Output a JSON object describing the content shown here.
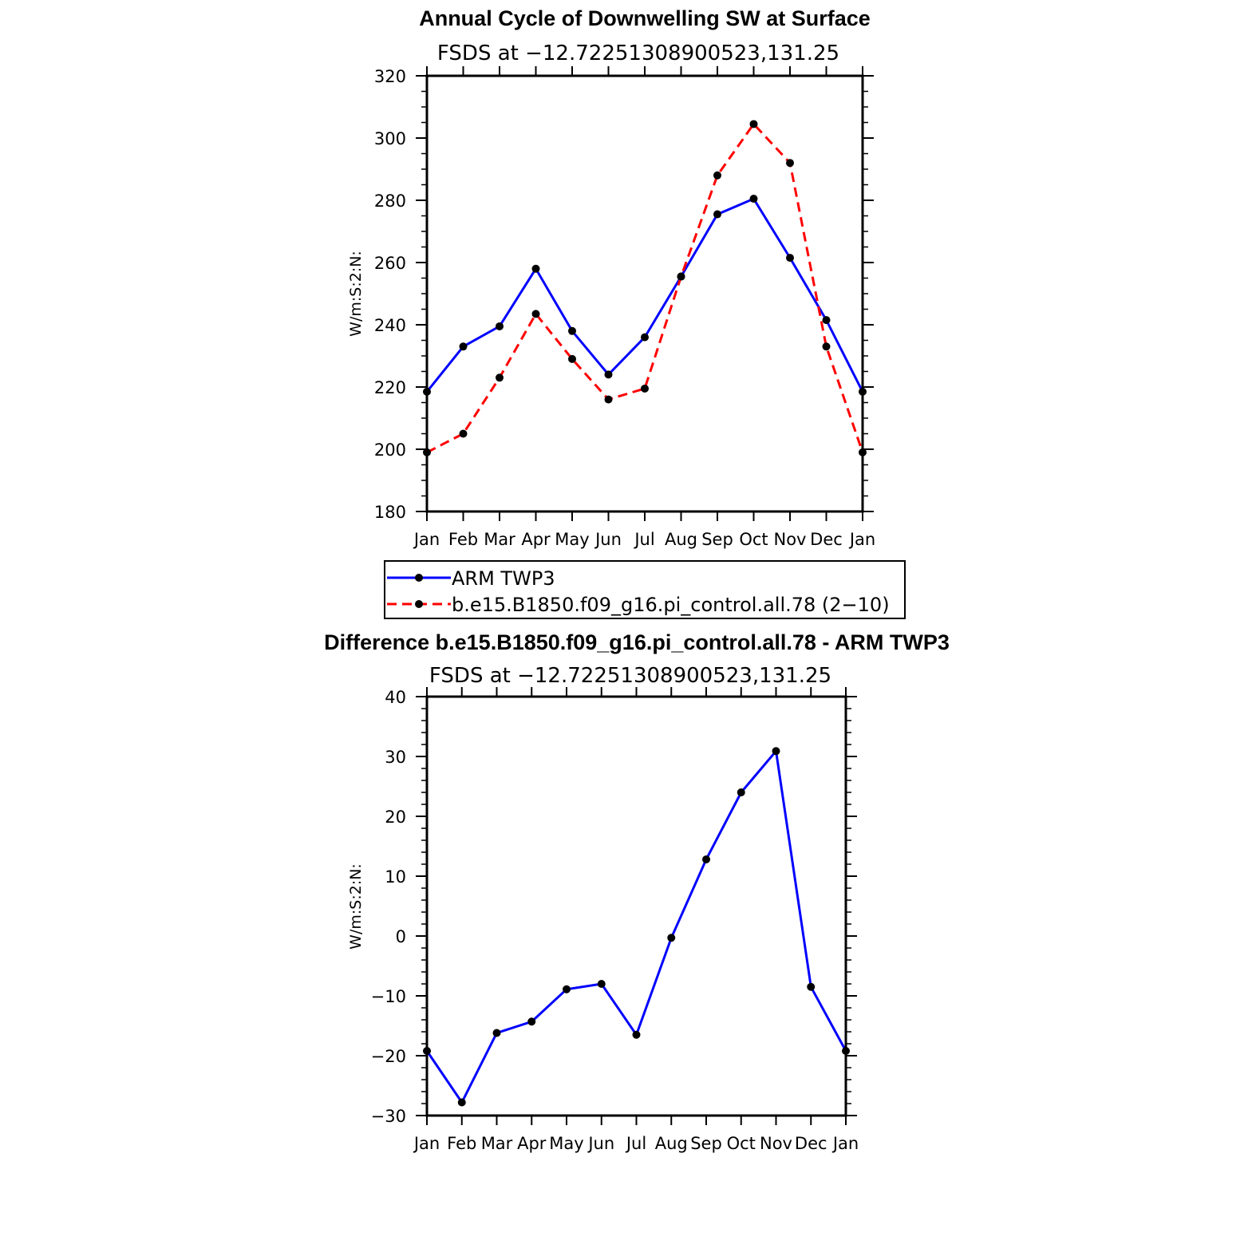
{
  "chart_data": [
    {
      "type": "line",
      "title": "Annual Cycle of Downwelling SW at Surface",
      "subtitle": "FSDS at −12.72251308900523,131.25",
      "ylabel": "W/m:S:2:N:",
      "xlabel": "",
      "categories": [
        "Jan",
        "Feb",
        "Mar",
        "Apr",
        "May",
        "Jun",
        "Jul",
        "Aug",
        "Sep",
        "Oct",
        "Nov",
        "Dec",
        "Jan"
      ],
      "ylim": [
        180,
        320
      ],
      "yticks": [
        180,
        200,
        220,
        240,
        260,
        280,
        300,
        320
      ],
      "ytick_labels": [
        "180",
        "200",
        "220",
        "240",
        "260",
        "280",
        "300",
        "320"
      ],
      "series": [
        {
          "name": "ARM TWP3",
          "color": "#0000ff",
          "dash": "solid",
          "values": [
            218.5,
            233.0,
            239.5,
            258.0,
            238.0,
            224.0,
            236.0,
            255.5,
            275.5,
            280.5,
            261.5,
            241.5,
            218.5
          ]
        },
        {
          "name": "b.e15.B1850.f09_g16.pi_control.all.78 (2−10)",
          "color": "#ff0000",
          "dash": "dashed",
          "values": [
            199.0,
            205.0,
            223.0,
            243.5,
            229.0,
            216.0,
            219.5,
            255.5,
            288.0,
            304.5,
            292.0,
            233.0,
            199.0
          ]
        }
      ],
      "legend": {
        "position": "below"
      }
    },
    {
      "type": "line",
      "title": "Difference b.e15.B1850.f09_g16.pi_control.all.78 - ARM TWP3",
      "subtitle": "FSDS at −12.72251308900523,131.25",
      "ylabel": "W/m:S:2:N:",
      "xlabel": "",
      "categories": [
        "Jan",
        "Feb",
        "Mar",
        "Apr",
        "May",
        "Jun",
        "Jul",
        "Aug",
        "Sep",
        "Oct",
        "Nov",
        "Dec",
        "Jan"
      ],
      "ylim": [
        -30,
        40
      ],
      "yticks": [
        -30,
        -20,
        -10,
        0,
        10,
        20,
        30,
        40
      ],
      "ytick_labels": [
        "−30",
        "−20",
        "−10",
        "0",
        "10",
        "20",
        "30",
        "40"
      ],
      "series": [
        {
          "name": "Difference",
          "color": "#0000ff",
          "dash": "solid",
          "values": [
            -19.2,
            -27.8,
            -16.2,
            -14.3,
            -8.9,
            -8.0,
            -16.5,
            -0.3,
            12.8,
            24.0,
            30.9,
            -8.5,
            -19.2
          ]
        }
      ]
    }
  ],
  "colors": {
    "axis": "#000000",
    "marker": "#000000"
  }
}
